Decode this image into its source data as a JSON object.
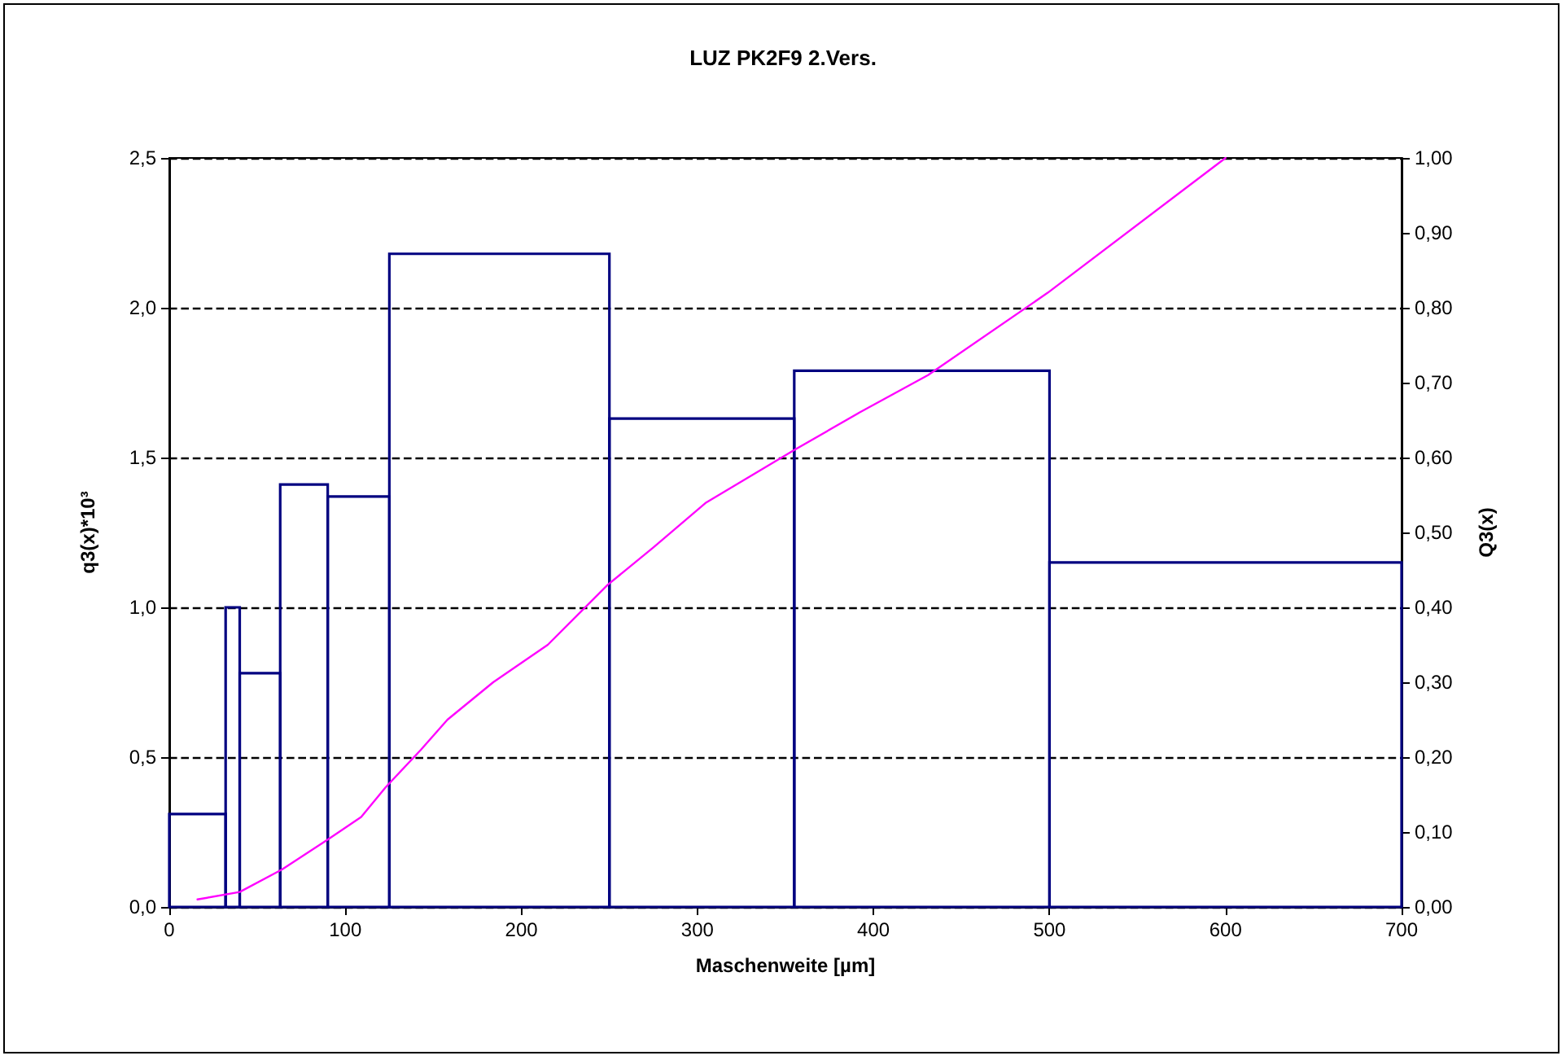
{
  "chart_data": {
    "type": "histogram",
    "title": "LUZ PK2F9 2.Vers.",
    "xlabel": "Maschenweite [µm]",
    "ylabel": "q3(x)*10³",
    "y2label": "Q3(x)",
    "bins": [
      0,
      32,
      40,
      63,
      90,
      125,
      250,
      355,
      500,
      700
    ],
    "series": [
      {
        "color": "#000080",
        "values": [
          0.31,
          1.0,
          0.78,
          1.41,
          1.37,
          2.18,
          1.63,
          1.79,
          1.15
        ]
      },
      {
        "type": "line",
        "axis": "y2",
        "color": "#ff00ff",
        "marker": "none",
        "x": [
          16,
          40,
          64,
          90,
          109,
          123,
          143,
          158,
          184,
          215,
          249,
          275,
          305,
          355,
          392,
          431,
          499,
          600
        ],
        "values": [
          0.01,
          0.02,
          0.05,
          0.09,
          0.12,
          0.16,
          0.21,
          0.25,
          0.3,
          0.35,
          0.43,
          0.48,
          0.54,
          0.61,
          0.66,
          0.71,
          0.82,
          1.0
        ]
      }
    ],
    "xlim": [
      0,
      700
    ],
    "xticks": [
      0,
      100,
      200,
      300,
      400,
      500,
      600,
      700
    ],
    "ylim": [
      0,
      2.5
    ],
    "yticks": [
      {
        "value": 0,
        "label": "0,0"
      },
      {
        "value": 0.5,
        "label": "0,5"
      },
      {
        "value": 1,
        "label": "1,0"
      },
      {
        "value": 1.5,
        "label": "1,5"
      },
      {
        "value": 2,
        "label": "2,0"
      },
      {
        "value": 2.5,
        "label": "2,5"
      }
    ],
    "y2lim": [
      0,
      1
    ],
    "y2ticks": [
      {
        "value": 0,
        "label": "0,00"
      },
      {
        "value": 0.1,
        "label": "0,10"
      },
      {
        "value": 0.2,
        "label": "0,20"
      },
      {
        "value": 0.3,
        "label": "0,30"
      },
      {
        "value": 0.4,
        "label": "0,40"
      },
      {
        "value": 0.5,
        "label": "0,50"
      },
      {
        "value": 0.6,
        "label": "0,60"
      },
      {
        "value": 0.7,
        "label": "0,70"
      },
      {
        "value": 0.8,
        "label": "0,80"
      },
      {
        "value": 0.9,
        "label": "0,90"
      },
      {
        "value": 1,
        "label": "1,00"
      }
    ],
    "grid": "y"
  }
}
